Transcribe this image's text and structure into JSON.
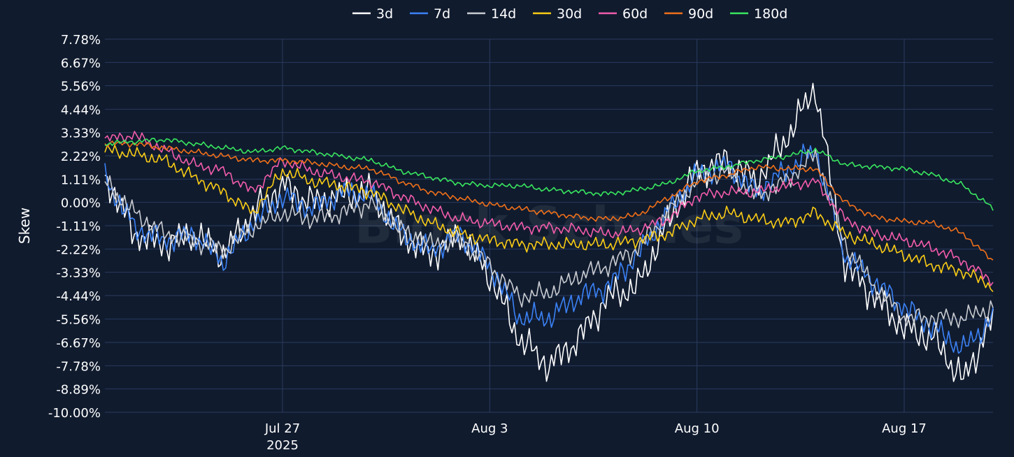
{
  "chart_data": {
    "type": "line",
    "title": "",
    "xlabel": "",
    "ylabel": "Skew",
    "y_unit": "%",
    "ylim": [
      -10.0,
      7.78
    ],
    "y_ticks": [
      7.78,
      6.67,
      5.56,
      4.44,
      3.33,
      2.22,
      1.11,
      0.0,
      -1.11,
      -2.22,
      -3.33,
      -4.44,
      -5.56,
      -6.67,
      -7.78,
      -8.89,
      -10.0
    ],
    "y_tick_labels": [
      "7.78%",
      "6.67%",
      "5.56%",
      "4.44%",
      "3.33%",
      "2.22%",
      "1.11%",
      "0.00%",
      "-1.11%",
      "-2.22%",
      "-3.33%",
      "-4.44%",
      "-5.56%",
      "-6.67%",
      "-7.78%",
      "-8.89%",
      "-10.00%"
    ],
    "xlim": [
      "2025-07-21",
      "2025-08-20"
    ],
    "x_ticks": [
      "2025-07-27",
      "2025-08-03",
      "2025-08-10",
      "2025-08-17"
    ],
    "x_tick_labels": [
      {
        "label": "Jul 27",
        "sub": "2025"
      },
      {
        "label": "Aug 3",
        "sub": ""
      },
      {
        "label": "Aug 10",
        "sub": ""
      },
      {
        "label": "Aug 17",
        "sub": ""
      }
    ],
    "grid": true,
    "legend_position": "top-center",
    "watermark": "Block Scholes",
    "x": [
      "2025-07-21",
      "2025-07-22",
      "2025-07-23",
      "2025-07-24",
      "2025-07-25",
      "2025-07-26",
      "2025-07-27",
      "2025-07-28",
      "2025-07-29",
      "2025-07-30",
      "2025-07-31",
      "2025-08-01",
      "2025-08-02",
      "2025-08-03",
      "2025-08-04",
      "2025-08-05",
      "2025-08-06",
      "2025-08-07",
      "2025-08-08",
      "2025-08-09",
      "2025-08-10",
      "2025-08-11",
      "2025-08-12",
      "2025-08-13",
      "2025-08-14",
      "2025-08-15",
      "2025-08-16",
      "2025-08-17",
      "2025-08-18",
      "2025-08-19",
      "2025-08-20"
    ],
    "series": [
      {
        "name": "3d",
        "color": "#ffffff",
        "values": [
          1.3,
          -1.5,
          -2.0,
          -1.5,
          -2.5,
          -0.5,
          0.8,
          0.0,
          0.3,
          0.5,
          -1.5,
          -2.5,
          -1.5,
          -3.5,
          -6.5,
          -7.8,
          -6.5,
          -4.5,
          -4.0,
          -1.0,
          1.5,
          2.0,
          1.0,
          3.0,
          5.5,
          -3.0,
          -4.5,
          -6.0,
          -6.5,
          -8.5,
          -5.5
        ]
      },
      {
        "name": "7d",
        "color": "#3b82f6",
        "values": [
          1.2,
          -1.2,
          -1.8,
          -1.5,
          -2.8,
          -1.0,
          0.3,
          -0.3,
          0.5,
          0.3,
          -1.5,
          -2.3,
          -1.5,
          -3.0,
          -5.5,
          -5.5,
          -4.5,
          -4.0,
          -2.5,
          -0.5,
          1.3,
          1.8,
          0.5,
          1.5,
          2.5,
          -2.5,
          -3.8,
          -5.0,
          -6.0,
          -7.0,
          -5.5
        ]
      },
      {
        "name": "14d",
        "color": "#c9ccd1",
        "values": [
          1.0,
          -0.5,
          -1.5,
          -1.8,
          -2.3,
          -1.2,
          -0.5,
          -0.8,
          -0.5,
          0.0,
          -1.3,
          -2.0,
          -1.8,
          -3.0,
          -4.5,
          -4.3,
          -3.5,
          -3.0,
          -2.2,
          -0.5,
          1.0,
          1.5,
          0.3,
          1.0,
          2.3,
          -2.0,
          -4.0,
          -5.5,
          -5.5,
          -5.5,
          -5.0
        ]
      },
      {
        "name": "30d",
        "color": "#facc15",
        "values": [
          2.5,
          2.3,
          2.0,
          1.2,
          0.5,
          -0.5,
          1.5,
          1.0,
          0.8,
          0.5,
          -0.3,
          -1.0,
          -1.5,
          -1.8,
          -2.0,
          -2.0,
          -2.0,
          -2.0,
          -1.8,
          -1.5,
          -0.8,
          -0.5,
          -0.8,
          -1.0,
          -0.5,
          -1.5,
          -2.0,
          -2.5,
          -3.0,
          -3.3,
          -4.0
        ]
      },
      {
        "name": "60d",
        "color": "#f25cab",
        "values": [
          3.0,
          3.2,
          2.5,
          1.8,
          1.5,
          0.5,
          2.0,
          1.5,
          1.2,
          1.0,
          0.3,
          -0.3,
          -0.8,
          -1.0,
          -1.2,
          -1.2,
          -1.3,
          -1.5,
          -1.3,
          -0.8,
          0.3,
          0.5,
          0.5,
          0.8,
          1.0,
          -0.8,
          -1.5,
          -1.8,
          -2.2,
          -2.8,
          -3.8
        ]
      },
      {
        "name": "90d",
        "color": "#f0701a",
        "values": [
          2.8,
          2.8,
          2.6,
          2.4,
          2.2,
          2.0,
          2.0,
          1.9,
          1.7,
          1.6,
          1.0,
          0.5,
          0.2,
          -0.1,
          -0.3,
          -0.5,
          -0.7,
          -0.8,
          -0.6,
          0.2,
          1.0,
          1.3,
          1.7,
          1.6,
          1.6,
          0.0,
          -0.7,
          -0.9,
          -1.0,
          -1.5,
          -2.8
        ]
      },
      {
        "name": "180d",
        "color": "#39e75f",
        "values": [
          2.8,
          2.9,
          3.0,
          2.8,
          2.6,
          2.4,
          2.6,
          2.4,
          2.2,
          2.0,
          1.5,
          1.2,
          0.9,
          0.8,
          0.8,
          0.6,
          0.5,
          0.4,
          0.6,
          0.9,
          1.5,
          1.7,
          2.0,
          2.2,
          2.5,
          1.8,
          1.7,
          1.6,
          1.3,
          0.8,
          -0.3
        ]
      }
    ]
  }
}
